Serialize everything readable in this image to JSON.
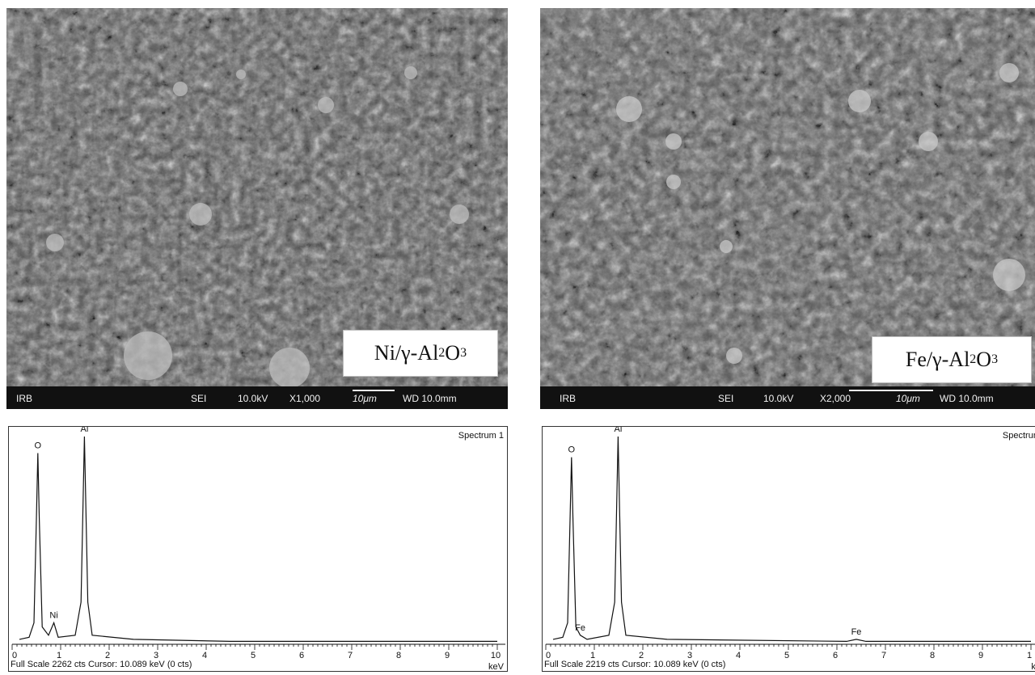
{
  "panels": [
    {
      "sample_label": {
        "element": "Ni/γ-Al",
        "sub1": "2",
        "mid": "O",
        "sub2": "3"
      },
      "sem_bar": {
        "lab": "IRB",
        "mode": "SEI",
        "voltage": "10.0kV",
        "magnification": "X1,000",
        "scale": "10μm",
        "wd": "WD 10.0mm"
      },
      "eds": {
        "spectrum_label": "Spectrum 1",
        "footer": "Full Scale 2262 cts  Cursor: 10.089 keV (0 cts)",
        "unit": "keV",
        "ticks": [
          "0",
          "1",
          "2",
          "3",
          "4",
          "5",
          "6",
          "7",
          "8",
          "9",
          "10"
        ],
        "peak_labels": [
          {
            "text": "O",
            "x": 0.53
          },
          {
            "text": "Al",
            "x": 1.49
          },
          {
            "text": "Ni",
            "x": 0.86
          }
        ],
        "spectrum": [
          [
            0.15,
            2
          ],
          [
            0.35,
            3
          ],
          [
            0.45,
            10
          ],
          [
            0.5,
            60
          ],
          [
            0.53,
            92
          ],
          [
            0.56,
            60
          ],
          [
            0.62,
            8
          ],
          [
            0.75,
            4
          ],
          [
            0.86,
            10
          ],
          [
            0.95,
            3
          ],
          [
            1.3,
            4
          ],
          [
            1.42,
            20
          ],
          [
            1.49,
            100
          ],
          [
            1.56,
            20
          ],
          [
            1.65,
            4
          ],
          [
            2.5,
            2
          ],
          [
            4.5,
            1
          ],
          [
            10,
            1
          ]
        ]
      }
    },
    {
      "sample_label": {
        "element": "Fe/γ-Al",
        "sub1": "2",
        "mid": "O",
        "sub2": "3"
      },
      "sem_bar": {
        "lab": "IRB",
        "mode": "SEI",
        "voltage": "10.0kV",
        "magnification": "X2,000",
        "scale": "10μm",
        "wd": "WD 10.0mm"
      },
      "eds": {
        "spectrum_label": "Spectrum",
        "footer": "Full Scale 2219 cts  Cursor: 10.089 keV (0 cts)",
        "unit": "ke",
        "ticks": [
          "0",
          "1",
          "2",
          "3",
          "4",
          "5",
          "6",
          "7",
          "8",
          "9",
          "1"
        ],
        "peak_labels": [
          {
            "text": "O",
            "x": 0.53
          },
          {
            "text": "Al",
            "x": 1.49
          },
          {
            "text": "Fe",
            "x": 0.71
          },
          {
            "text": "Fe",
            "x": 6.4
          }
        ],
        "spectrum": [
          [
            0.15,
            2
          ],
          [
            0.35,
            3
          ],
          [
            0.45,
            10
          ],
          [
            0.5,
            60
          ],
          [
            0.53,
            90
          ],
          [
            0.56,
            60
          ],
          [
            0.62,
            8
          ],
          [
            0.71,
            4
          ],
          [
            0.85,
            2
          ],
          [
            1.3,
            4
          ],
          [
            1.42,
            20
          ],
          [
            1.49,
            100
          ],
          [
            1.56,
            20
          ],
          [
            1.65,
            4
          ],
          [
            2.5,
            2
          ],
          [
            6.2,
            1
          ],
          [
            6.4,
            2
          ],
          [
            6.6,
            1
          ],
          [
            10,
            1
          ]
        ]
      }
    }
  ]
}
